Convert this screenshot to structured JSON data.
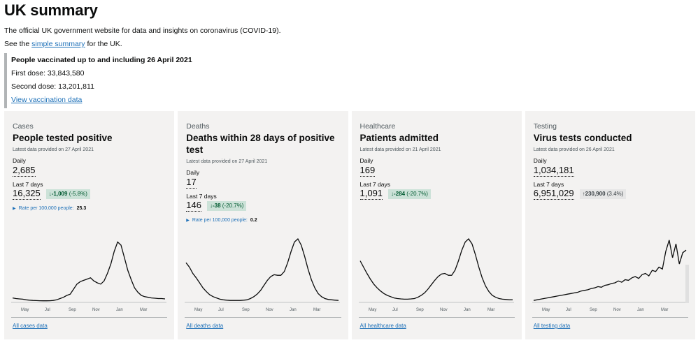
{
  "header": {
    "title": "UK summary",
    "intro": "The official UK government website for data and insights on coronavirus (COVID-19).",
    "see_prefix": "See the ",
    "see_link": "simple summary",
    "see_suffix": " for the UK."
  },
  "vaccination": {
    "heading": "People vaccinated up to and including 26 April 2021",
    "first": "First dose: 33,843,580",
    "second": "Second dose: 13,201,811",
    "link": "View vaccination data"
  },
  "cards": [
    {
      "category": "Cases",
      "title": "People tested positive",
      "date": "Latest data provided on 27 April 2021",
      "daily_label": "Daily",
      "daily": "2,685",
      "week_label": "Last 7 days",
      "week": "16,325",
      "change_arrow": "↓",
      "change_value": "-1,009",
      "change_pct": "(-5.8%)",
      "change_dir": "down",
      "rate_label": "Rate per 100,000 people:",
      "rate_value": "25.3",
      "link": "All cases data",
      "months": [
        "May",
        "Jul",
        "Sep",
        "Nov",
        "Jan",
        "Mar"
      ],
      "series": [
        0.06,
        0.05,
        0.045,
        0.04,
        0.03,
        0.025,
        0.02,
        0.018,
        0.016,
        0.015,
        0.015,
        0.016,
        0.02,
        0.03,
        0.05,
        0.07,
        0.1,
        0.12,
        0.2,
        0.28,
        0.32,
        0.34,
        0.36,
        0.38,
        0.33,
        0.3,
        0.28,
        0.33,
        0.45,
        0.6,
        0.8,
        0.95,
        0.9,
        0.7,
        0.5,
        0.35,
        0.22,
        0.15,
        0.1,
        0.08,
        0.07,
        0.06,
        0.055,
        0.05,
        0.05,
        0.045
      ]
    },
    {
      "category": "Deaths",
      "title": "Deaths within 28 days of positive test",
      "date": "Latest data provided on 27 April 2021",
      "daily_label": "Daily",
      "daily": "17",
      "week_label": "Last 7 days",
      "week": "146",
      "change_arrow": "↓",
      "change_value": "-38",
      "change_pct": "(-20.7%)",
      "change_dir": "down",
      "rate_label": "Rate per 100,000 people:",
      "rate_value": "0.2",
      "link": "All deaths data",
      "months": [
        "May",
        "Jul",
        "Sep",
        "Nov",
        "Jan",
        "Mar"
      ],
      "series": [
        0.62,
        0.55,
        0.45,
        0.38,
        0.3,
        0.22,
        0.16,
        0.11,
        0.08,
        0.06,
        0.04,
        0.03,
        0.025,
        0.02,
        0.02,
        0.02,
        0.02,
        0.025,
        0.03,
        0.05,
        0.08,
        0.12,
        0.18,
        0.26,
        0.34,
        0.4,
        0.43,
        0.42,
        0.42,
        0.48,
        0.62,
        0.8,
        0.95,
        1.0,
        0.9,
        0.72,
        0.52,
        0.35,
        0.22,
        0.13,
        0.08,
        0.05,
        0.035,
        0.03,
        0.025,
        0.02
      ]
    },
    {
      "category": "Healthcare",
      "title": "Patients admitted",
      "date": "Latest data provided on 21 April 2021",
      "daily_label": "Daily",
      "daily": "169",
      "week_label": "Last 7 days",
      "week": "1,091",
      "change_arrow": "↓",
      "change_value": "-284",
      "change_pct": "(-20.7%)",
      "change_dir": "down",
      "rate_label": "",
      "rate_value": "",
      "link": "All healthcare data",
      "months": [
        "May",
        "Jul",
        "Sep",
        "Nov",
        "Jan",
        "Mar"
      ],
      "series": [
        0.65,
        0.55,
        0.45,
        0.36,
        0.28,
        0.22,
        0.17,
        0.13,
        0.1,
        0.08,
        0.06,
        0.05,
        0.045,
        0.04,
        0.04,
        0.045,
        0.05,
        0.07,
        0.1,
        0.14,
        0.2,
        0.27,
        0.34,
        0.4,
        0.44,
        0.45,
        0.42,
        0.42,
        0.5,
        0.65,
        0.82,
        0.95,
        1.0,
        0.92,
        0.75,
        0.55,
        0.38,
        0.25,
        0.16,
        0.1,
        0.07,
        0.05,
        0.04,
        0.035,
        0.03,
        0.03
      ]
    },
    {
      "category": "Testing",
      "title": "Virus tests conducted",
      "date": "Latest data provided on 26 April 2021",
      "daily_label": "Daily",
      "daily": "1,034,181",
      "week_label": "Last 7 days",
      "week": "6,951,029",
      "change_arrow": "↑",
      "change_value": "230,900",
      "change_pct": "(3.4%)",
      "change_dir": "up",
      "rate_label": "",
      "rate_value": "",
      "link": "All testing data",
      "months": [
        "May",
        "Jul",
        "Sep",
        "Nov",
        "Jan",
        "Mar"
      ],
      "series": [
        0.02,
        0.03,
        0.04,
        0.05,
        0.06,
        0.07,
        0.08,
        0.09,
        0.1,
        0.11,
        0.12,
        0.13,
        0.14,
        0.15,
        0.17,
        0.18,
        0.19,
        0.21,
        0.22,
        0.24,
        0.23,
        0.26,
        0.27,
        0.29,
        0.3,
        0.33,
        0.31,
        0.35,
        0.34,
        0.38,
        0.4,
        0.37,
        0.43,
        0.45,
        0.41,
        0.5,
        0.48,
        0.55,
        0.52,
        0.8,
        0.98,
        0.7,
        0.92,
        0.6,
        0.78,
        0.82
      ]
    }
  ]
}
